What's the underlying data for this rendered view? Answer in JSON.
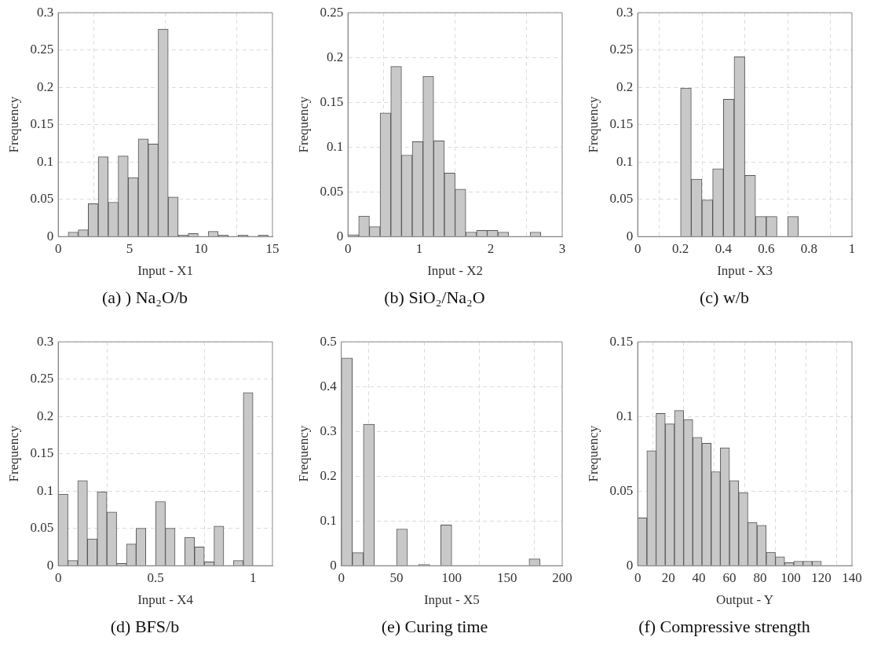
{
  "chart_data": [
    {
      "type": "histogram",
      "title": "(a) ) Na₂O/b",
      "xlabel": "Input - X1",
      "ylabel": "Frequency",
      "color": "#c8c8c8",
      "grid": true,
      "bins": [
        0.7,
        1.4,
        2.1,
        2.8,
        3.5,
        4.2,
        4.9,
        5.6,
        6.3,
        7,
        7.7,
        8.4,
        9.1,
        9.8,
        10.5,
        11.2,
        11.9,
        12.6,
        13.3,
        14,
        14.7
      ],
      "values": [
        0.006,
        0.009,
        0.044,
        0.107,
        0.046,
        0.108,
        0.079,
        0.131,
        0.124,
        0.278,
        0.053,
        0.002,
        0.004,
        0,
        0.007,
        0.002,
        0,
        0.002,
        0,
        0.002
      ],
      "xlim": [
        0,
        15
      ],
      "xticks": [
        0,
        5,
        10,
        15
      ],
      "ylim": [
        0,
        0.3
      ],
      "yticks": [
        0,
        0.05,
        0.1,
        0.15,
        0.2,
        0.25,
        0.3
      ]
    },
    {
      "type": "histogram",
      "title": "(b) SiO₂/Na₂O",
      "xlabel": "Input - X2",
      "ylabel": "Frequency",
      "color": "#c8c8c8",
      "grid": true,
      "bins": [
        0,
        0.15,
        0.3,
        0.45,
        0.6,
        0.75,
        0.9,
        1.05,
        1.2,
        1.35,
        1.5,
        1.65,
        1.8,
        1.95,
        2.1,
        2.25,
        2.4,
        2.55,
        2.7
      ],
      "values": [
        0.002,
        0.023,
        0.011,
        0.138,
        0.19,
        0.091,
        0.106,
        0.179,
        0.107,
        0.071,
        0.053,
        0.005,
        0.007,
        0.007,
        0.005,
        0,
        0,
        0.005
      ],
      "xlim": [
        0,
        3
      ],
      "xticks": [
        0,
        1,
        2,
        3
      ],
      "ylim": [
        0,
        0.25
      ],
      "yticks": [
        0,
        0.05,
        0.1,
        0.15,
        0.2,
        0.25
      ]
    },
    {
      "type": "histogram",
      "title": "(c) w/b",
      "xlabel": "Input - X3",
      "ylabel": "Frequency",
      "color": "#c8c8c8",
      "grid": true,
      "bins": [
        0.2,
        0.25,
        0.3,
        0.35,
        0.4,
        0.45,
        0.5,
        0.55,
        0.6,
        0.65,
        0.7,
        0.75
      ],
      "values": [
        0.199,
        0.077,
        0.049,
        0.091,
        0.184,
        0.241,
        0.082,
        0.027,
        0.027,
        0,
        0.027
      ],
      "xlim": [
        0,
        1
      ],
      "xticks": [
        0,
        0.2,
        0.4,
        0.6,
        0.8,
        1
      ],
      "ylim": [
        0,
        0.3
      ],
      "yticks": [
        0,
        0.05,
        0.1,
        0.15,
        0.2,
        0.25,
        0.3
      ]
    },
    {
      "type": "histogram",
      "title": "(d) BFS/b",
      "xlabel": "Input - X4",
      "ylabel": "Frequency",
      "color": "#c8c8c8",
      "grid": true,
      "bins": [
        0,
        0.05,
        0.1,
        0.15,
        0.2,
        0.25,
        0.3,
        0.35,
        0.4,
        0.45,
        0.5,
        0.55,
        0.6,
        0.65,
        0.7,
        0.75,
        0.8,
        0.85,
        0.9,
        0.95,
        1
      ],
      "values": [
        0.096,
        0.007,
        0.114,
        0.036,
        0.099,
        0.072,
        0.003,
        0.029,
        0.05,
        0,
        0.086,
        0.05,
        0,
        0.038,
        0.025,
        0.005,
        0.053,
        0,
        0.007,
        0.232
      ],
      "xlim": [
        0,
        1.1
      ],
      "xticks": [
        0,
        0.5,
        1
      ],
      "ylim": [
        0,
        0.3
      ],
      "yticks": [
        0,
        0.05,
        0.1,
        0.15,
        0.2,
        0.25,
        0.3
      ]
    },
    {
      "type": "histogram",
      "title": "(e) Curing time",
      "xlabel": "Input - X5",
      "ylabel": "Frequency",
      "color": "#c8c8c8",
      "grid": true,
      "bins": [
        0,
        10,
        20,
        30,
        40,
        50,
        60,
        70,
        80,
        90,
        100,
        110,
        120,
        130,
        140,
        150,
        160,
        170,
        180
      ],
      "values": [
        0.464,
        0.029,
        0.316,
        0,
        0,
        0.082,
        0,
        0.003,
        0,
        0.091,
        0,
        0,
        0,
        0,
        0,
        0,
        0,
        0.015
      ],
      "xlim": [
        0,
        200
      ],
      "xticks": [
        0,
        50,
        100,
        150,
        200
      ],
      "ylim": [
        0,
        0.5
      ],
      "yticks": [
        0,
        0.1,
        0.2,
        0.3,
        0.4,
        0.5
      ]
    },
    {
      "type": "histogram",
      "title": "(f) Compressive strength",
      "xlabel": "Output - Y",
      "ylabel": "Frequency",
      "color": "#c8c8c8",
      "grid": true,
      "bins": [
        0,
        6,
        12,
        18,
        24,
        30,
        36,
        42,
        48,
        54,
        60,
        66,
        72,
        78,
        84,
        90,
        96,
        102,
        108,
        114,
        120
      ],
      "values": [
        0.032,
        0.077,
        0.102,
        0.095,
        0.104,
        0.098,
        0.086,
        0.082,
        0.063,
        0.079,
        0.057,
        0.049,
        0.029,
        0.027,
        0.009,
        0.006,
        0.002,
        0.003,
        0.003,
        0.003
      ],
      "xlim": [
        0,
        140
      ],
      "xticks": [
        0,
        20,
        40,
        60,
        80,
        100,
        120,
        140
      ],
      "ylim": [
        0,
        0.15
      ],
      "yticks": [
        0,
        0.05,
        0.1,
        0.15
      ]
    }
  ]
}
